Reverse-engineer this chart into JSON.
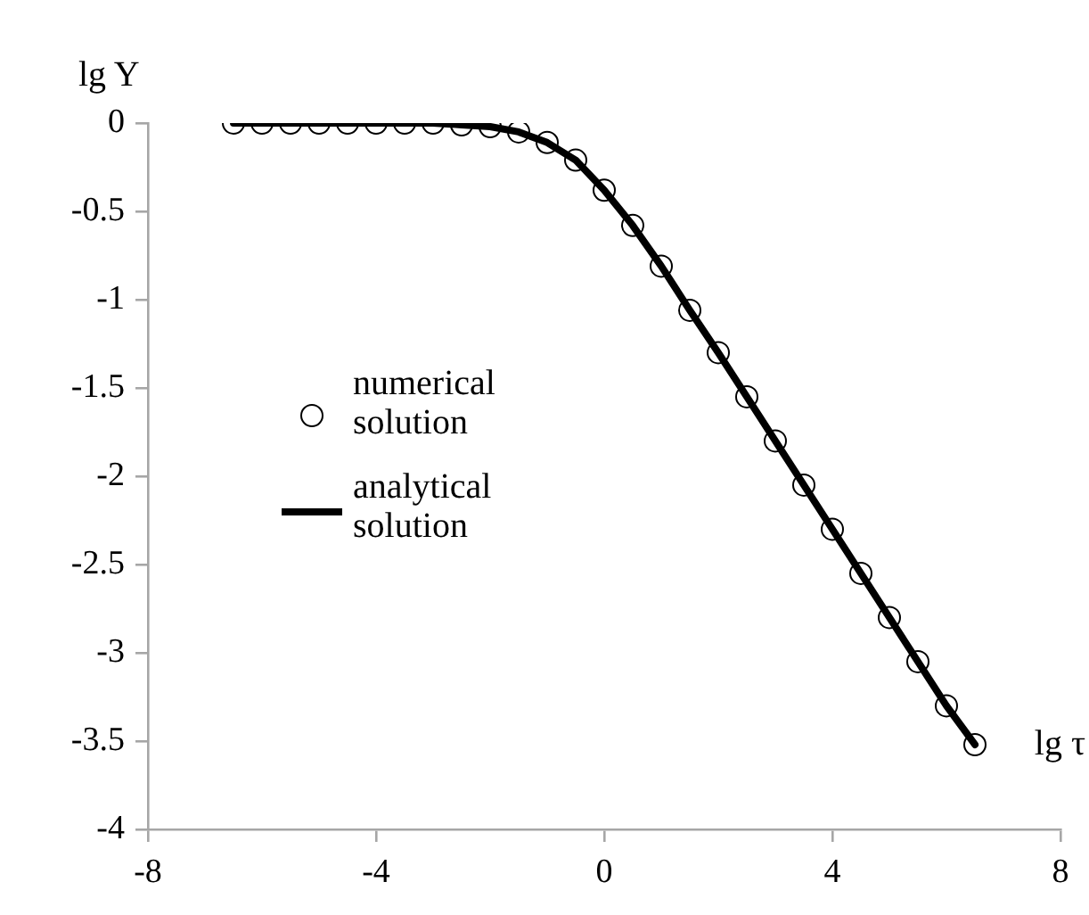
{
  "chart_data": {
    "type": "line",
    "xlabel": "lg τ",
    "ylabel": "lg Y",
    "xlim": [
      -8,
      8
    ],
    "xticks": [
      -8,
      -4,
      0,
      4,
      8
    ],
    "ylim": [
      -4,
      0
    ],
    "yticks": [
      0,
      -0.5,
      -1,
      -1.5,
      -2,
      -2.5,
      -3,
      -3.5,
      -4
    ],
    "grid": false,
    "legend": "left",
    "x": [
      -6.5,
      -6,
      -5.5,
      -5,
      -4.5,
      -4,
      -3.5,
      -3,
      -2.5,
      -2,
      -1.5,
      -1,
      -0.5,
      0,
      0.5,
      1,
      1.5,
      2,
      2.5,
      3,
      3.5,
      4,
      4.5,
      5,
      5.5,
      6,
      6.5
    ],
    "series": [
      {
        "name": "numerical solution",
        "type": "scatter",
        "marker": "circle",
        "color": "#000000",
        "values": [
          0,
          0,
          0,
          0,
          0,
          0,
          0,
          0,
          -0.01,
          -0.02,
          -0.05,
          -0.11,
          -0.21,
          -0.38,
          -0.58,
          -0.81,
          -1.06,
          -1.3,
          -1.55,
          -1.8,
          -2.05,
          -2.3,
          -2.55,
          -2.8,
          -3.05,
          -3.3,
          -3.52
        ]
      },
      {
        "name": "analytical solution",
        "marker": "none",
        "line_style": "solid",
        "color": "#000000",
        "values": [
          0,
          0,
          0,
          0,
          0,
          0,
          0,
          0,
          -0.01,
          -0.02,
          -0.05,
          -0.11,
          -0.21,
          -0.38,
          -0.58,
          -0.81,
          -1.06,
          -1.3,
          -1.55,
          -1.8,
          -2.05,
          -2.3,
          -2.55,
          -2.8,
          -3.05,
          -3.3,
          -3.52
        ]
      }
    ]
  }
}
